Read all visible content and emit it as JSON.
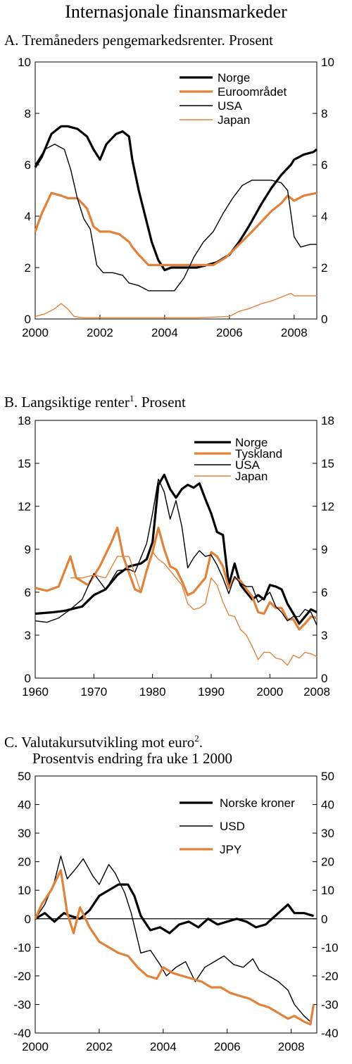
{
  "page": {
    "title": "Internasjonale finansmarkeder"
  },
  "colors": {
    "black": "#000000",
    "orange": "#e2823a"
  },
  "panels": [
    {
      "letter": "A.",
      "title": "Tremåneders pengemarkedsrenter. Prosent",
      "sup": "",
      "after": "",
      "line2": ""
    },
    {
      "letter": "B.",
      "title": "Langsiktige renter",
      "sup": "1",
      "after": ". Prosent",
      "line2": ""
    },
    {
      "letter": "C.",
      "title": "Valutakursutvikling mot euro",
      "sup": "2",
      "after": ".",
      "line2": "Prosentvis endring fra uke 1 2000"
    }
  ],
  "chart_data": [
    {
      "type": "line",
      "title": "Tremåneders pengemarkedsrenter. Prosent",
      "xlim": [
        2000,
        2008.7
      ],
      "ylim": [
        0,
        10
      ],
      "xticks": [
        2000,
        2002,
        2004,
        2006,
        2008
      ],
      "yticks": [
        0,
        2,
        4,
        6,
        8,
        10
      ],
      "grid": false,
      "legend": "top-right",
      "series": [
        {
          "name": "Norge",
          "color": "#000000",
          "width": 3.2,
          "x": [
            2000,
            2000.2,
            2000.5,
            2000.8,
            2001,
            2001.3,
            2001.6,
            2001.8,
            2002,
            2002.2,
            2002.5,
            2002.7,
            2002.9,
            2003,
            2003.2,
            2003.4,
            2003.6,
            2003.8,
            2004,
            2004.2,
            2004.5,
            2004.8,
            2005,
            2005.3,
            2005.6,
            2006,
            2006.3,
            2006.6,
            2007,
            2007.3,
            2007.6,
            2007.9,
            2008,
            2008.3,
            2008.6,
            2008.7
          ],
          "y": [
            5.9,
            6.3,
            7.2,
            7.5,
            7.5,
            7.4,
            7.1,
            6.6,
            6.2,
            6.8,
            7.2,
            7.3,
            7.1,
            6.2,
            5.0,
            4.0,
            3.0,
            2.3,
            1.9,
            2.0,
            2.0,
            2.0,
            2.0,
            2.1,
            2.2,
            2.5,
            3.0,
            3.6,
            4.5,
            5.1,
            5.6,
            6.0,
            6.2,
            6.4,
            6.5,
            6.6
          ]
        },
        {
          "name": "Euroområdet",
          "color": "#e2823a",
          "width": 3.2,
          "x": [
            2000,
            2000.2,
            2000.5,
            2000.8,
            2001,
            2001.3,
            2001.6,
            2001.8,
            2002,
            2002.3,
            2002.6,
            2002.9,
            2003,
            2003.2,
            2003.5,
            2003.8,
            2004,
            2004.5,
            2005,
            2005.5,
            2005.9,
            2006.3,
            2006.7,
            2007,
            2007.3,
            2007.6,
            2007.8,
            2008,
            2008.3,
            2008.7
          ],
          "y": [
            3.4,
            4.1,
            4.9,
            4.8,
            4.7,
            4.7,
            4.3,
            3.6,
            3.4,
            3.4,
            3.3,
            3.0,
            2.8,
            2.5,
            2.1,
            2.1,
            2.1,
            2.1,
            2.1,
            2.1,
            2.4,
            2.9,
            3.4,
            3.8,
            4.2,
            4.5,
            4.8,
            4.6,
            4.8,
            4.9
          ]
        },
        {
          "name": "USA",
          "color": "#000000",
          "width": 1.4,
          "x": [
            2000,
            2000.3,
            2000.6,
            2000.9,
            2001.1,
            2001.3,
            2001.5,
            2001.7,
            2001.9,
            2002.1,
            2002.4,
            2002.7,
            2002.9,
            2003.2,
            2003.5,
            2003.8,
            2004,
            2004.3,
            2004.6,
            2004.9,
            2005.2,
            2005.5,
            2005.8,
            2006.1,
            2006.4,
            2006.7,
            2007,
            2007.3,
            2007.6,
            2007.8,
            2008,
            2008.2,
            2008.5,
            2008.7
          ],
          "y": [
            6.0,
            6.6,
            6.8,
            6.6,
            5.8,
            4.7,
            3.9,
            3.5,
            2.1,
            1.8,
            1.8,
            1.7,
            1.4,
            1.3,
            1.1,
            1.1,
            1.1,
            1.1,
            1.6,
            2.4,
            3.0,
            3.4,
            4.1,
            4.7,
            5.2,
            5.4,
            5.4,
            5.4,
            5.3,
            5.0,
            3.2,
            2.8,
            2.9,
            2.9
          ]
        },
        {
          "name": "Japan",
          "color": "#e2823a",
          "width": 1.4,
          "x": [
            2000,
            2000.3,
            2000.6,
            2000.8,
            2001,
            2001.2,
            2001.5,
            2002,
            2003,
            2004,
            2005,
            2006,
            2006.3,
            2006.6,
            2007,
            2007.3,
            2007.6,
            2007.9,
            2008,
            2008.3,
            2008.7
          ],
          "y": [
            0.1,
            0.2,
            0.4,
            0.6,
            0.4,
            0.1,
            0.05,
            0.05,
            0.05,
            0.05,
            0.05,
            0.1,
            0.3,
            0.4,
            0.6,
            0.7,
            0.85,
            1.0,
            0.9,
            0.9,
            0.9
          ]
        }
      ]
    },
    {
      "type": "line",
      "title": "Langsiktige renter. Prosent",
      "xlim": [
        1960,
        2008
      ],
      "ylim": [
        0,
        18
      ],
      "xticks": [
        1960,
        1970,
        1980,
        1990,
        2000,
        2008
      ],
      "yticks": [
        0,
        3,
        6,
        9,
        12,
        15,
        18
      ],
      "grid": false,
      "legend": "top-right",
      "series": [
        {
          "name": "Norge",
          "color": "#000000",
          "width": 3.2,
          "x": [
            1960,
            1963,
            1965,
            1968,
            1970,
            1972,
            1974,
            1976,
            1978,
            1979,
            1980,
            1981,
            1982,
            1983,
            1984,
            1985,
            1986,
            1987,
            1988,
            1989,
            1990,
            1991,
            1992,
            1993,
            1994,
            1995,
            1996,
            1997,
            1998,
            1999,
            2000,
            2001,
            2002,
            2003,
            2004,
            2005,
            2006,
            2007,
            2008
          ],
          "y": [
            4.5,
            4.6,
            4.7,
            5.0,
            5.8,
            6.2,
            7.2,
            7.8,
            8.0,
            8.3,
            9.5,
            13.5,
            14.2,
            13.2,
            12.6,
            13.2,
            13.5,
            13.3,
            13.6,
            12.5,
            11.5,
            10.2,
            10.0,
            6.5,
            8.0,
            6.5,
            6.0,
            5.5,
            5.8,
            5.5,
            6.5,
            6.4,
            6.2,
            5.2,
            4.5,
            3.8,
            4.3,
            4.8,
            4.6
          ]
        },
        {
          "name": "Tyskland",
          "color": "#e2823a",
          "width": 3.2,
          "x": [
            1960,
            1962,
            1964,
            1966,
            1967,
            1969,
            1971,
            1973,
            1974,
            1975,
            1977,
            1978,
            1979,
            1980,
            1981,
            1982,
            1983,
            1984,
            1985,
            1986,
            1987,
            1988,
            1989,
            1990,
            1991,
            1992,
            1993,
            1994,
            1995,
            1996,
            1997,
            1998,
            1999,
            2000,
            2001,
            2002,
            2003,
            2004,
            2005,
            2006,
            2007,
            2008
          ],
          "y": [
            6.3,
            6.1,
            6.4,
            8.5,
            7.0,
            6.5,
            7.8,
            9.5,
            10.5,
            8.5,
            6.2,
            6.0,
            7.5,
            8.8,
            10.5,
            9.0,
            7.8,
            7.6,
            6.8,
            5.8,
            6.0,
            6.5,
            7.0,
            8.8,
            8.5,
            7.8,
            6.3,
            7.0,
            6.8,
            6.2,
            5.7,
            4.6,
            4.5,
            5.3,
            4.9,
            4.9,
            4.1,
            4.1,
            3.4,
            3.8,
            4.3,
            4.2
          ]
        },
        {
          "name": "USA",
          "color": "#000000",
          "width": 1.4,
          "x": [
            1960,
            1962,
            1964,
            1966,
            1968,
            1970,
            1972,
            1974,
            1976,
            1977,
            1978,
            1979,
            1980,
            1981,
            1982,
            1983,
            1984,
            1985,
            1986,
            1987,
            1988,
            1989,
            1990,
            1991,
            1992,
            1993,
            1994,
            1995,
            1996,
            1997,
            1998,
            1999,
            2000,
            2001,
            2002,
            2003,
            2004,
            2005,
            2006,
            2007,
            2008
          ],
          "y": [
            4.0,
            3.9,
            4.2,
            4.8,
            5.5,
            7.3,
            6.2,
            7.5,
            7.6,
            7.4,
            8.4,
            9.4,
            11.5,
            13.9,
            13.0,
            11.1,
            12.4,
            10.6,
            7.7,
            8.4,
            8.9,
            8.5,
            8.6,
            7.9,
            7.0,
            5.9,
            7.1,
            6.6,
            6.4,
            6.4,
            5.3,
            5.6,
            6.0,
            5.0,
            4.6,
            4.0,
            4.3,
            4.3,
            4.8,
            4.6,
            3.7
          ]
        },
        {
          "name": "Japan",
          "color": "#e2823a",
          "width": 1.4,
          "x": [
            1966,
            1968,
            1970,
            1972,
            1974,
            1976,
            1978,
            1980,
            1981,
            1982,
            1983,
            1984,
            1985,
            1986,
            1987,
            1988,
            1989,
            1990,
            1991,
            1992,
            1993,
            1994,
            1995,
            1996,
            1997,
            1998,
            1999,
            2000,
            2001,
            2002,
            2003,
            2004,
            2005,
            2006,
            2007,
            2008
          ],
          "y": [
            7.0,
            7.0,
            7.2,
            7.0,
            8.5,
            8.5,
            6.0,
            8.8,
            8.3,
            8.0,
            7.5,
            7.0,
            6.5,
            5.2,
            4.8,
            4.9,
            5.2,
            7.0,
            6.5,
            5.3,
            4.4,
            4.3,
            3.4,
            3.0,
            2.2,
            1.3,
            1.8,
            1.8,
            1.4,
            1.3,
            0.9,
            1.6,
            1.4,
            1.8,
            1.7,
            1.5
          ]
        }
      ]
    },
    {
      "type": "line",
      "title": "Valutakursutvikling mot euro. Prosentvis endring fra uke 1 2000",
      "xlim": [
        2000,
        2008.8
      ],
      "ylim": [
        -40,
        50
      ],
      "xticks": [
        2000,
        2002,
        2004,
        2006,
        2008
      ],
      "yticks": [
        -40,
        -30,
        -20,
        -10,
        0,
        10,
        20,
        30,
        40,
        50
      ],
      "grid": false,
      "legend": "top-right",
      "zero_line": true,
      "series": [
        {
          "name": "Norske kroner",
          "color": "#000000",
          "width": 3.2,
          "x": [
            2000,
            2000.3,
            2000.6,
            2000.9,
            2001.1,
            2001.4,
            2001.7,
            2002,
            2002.3,
            2002.6,
            2002.9,
            2003.1,
            2003.3,
            2003.6,
            2003.9,
            2004.2,
            2004.5,
            2004.8,
            2005.1,
            2005.4,
            2005.7,
            2006,
            2006.3,
            2006.6,
            2006.9,
            2007.2,
            2007.5,
            2007.7,
            2007.9,
            2008.1,
            2008.4,
            2008.7
          ],
          "y": [
            0,
            2,
            -1,
            2,
            1,
            0,
            3,
            8,
            10,
            12,
            12,
            8,
            1,
            -4,
            -3,
            -5,
            -2,
            -1,
            -3,
            0,
            -2,
            -1,
            0,
            -1,
            -3,
            -2,
            1,
            3,
            5,
            2,
            2,
            1
          ]
        },
        {
          "name": "USD",
          "color": "#000000",
          "width": 1.4,
          "x": [
            2000,
            2000.3,
            2000.6,
            2000.8,
            2001,
            2001.3,
            2001.5,
            2001.8,
            2002,
            2002.3,
            2002.5,
            2002.8,
            2003,
            2003.3,
            2003.6,
            2003.9,
            2004.1,
            2004.4,
            2004.7,
            2005,
            2005.3,
            2005.6,
            2005.9,
            2006.2,
            2006.5,
            2006.8,
            2007,
            2007.3,
            2007.6,
            2007.9,
            2008.1,
            2008.4,
            2008.6,
            2008.7
          ],
          "y": [
            0,
            5,
            13,
            22,
            14,
            18,
            21,
            15,
            12,
            19,
            16,
            9,
            2,
            -12,
            -11,
            -16,
            -20,
            -17,
            -15,
            -22,
            -17,
            -15,
            -13,
            -16,
            -17,
            -14,
            -18,
            -20,
            -22,
            -25,
            -30,
            -34,
            -36,
            -30
          ]
        },
        {
          "name": "JPY",
          "color": "#e2823a",
          "width": 3.2,
          "x": [
            2000,
            2000.2,
            2000.5,
            2000.8,
            2001,
            2001.2,
            2001.4,
            2001.7,
            2002,
            2002.3,
            2002.6,
            2002.9,
            2003.2,
            2003.5,
            2003.8,
            2004,
            2004.3,
            2004.6,
            2004.9,
            2005.2,
            2005.5,
            2005.8,
            2006.1,
            2006.4,
            2006.7,
            2007,
            2007.3,
            2007.6,
            2007.9,
            2008.1,
            2008.4,
            2008.6,
            2008.7
          ],
          "y": [
            0,
            5,
            10,
            17,
            2,
            -5,
            4,
            -3,
            -8,
            -10,
            -12,
            -13,
            -17,
            -20,
            -21,
            -17,
            -19,
            -20,
            -21,
            -22,
            -24,
            -24,
            -26,
            -27,
            -28,
            -30,
            -31,
            -33,
            -35,
            -34,
            -36,
            -37,
            -30
          ]
        }
      ]
    }
  ]
}
